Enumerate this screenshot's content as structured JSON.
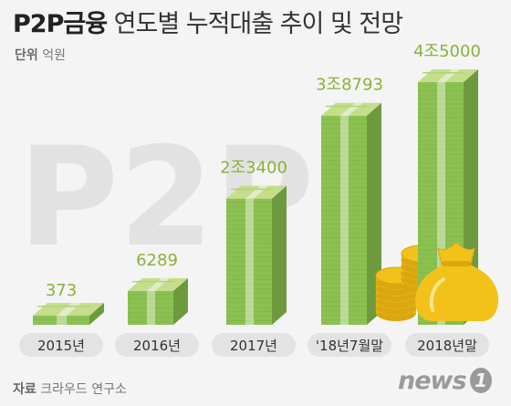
{
  "header": {
    "title_bold": "P2P금융",
    "title_rest": "연도별 누적대출 추이 및 전망",
    "unit_key": "단위",
    "unit_value": "억원"
  },
  "footer": {
    "source_key": "자료",
    "source_value": "크라우드 연구소",
    "logo_text": "news",
    "logo_badge": "1"
  },
  "watermark": "P2P",
  "colors": {
    "money_top": "#c5de8b",
    "money_front": "#8cc152",
    "money_side": "#6e9a3e",
    "band": "#e3eed0",
    "value_label": "#8cb13a",
    "category_pill": "#e3e3e3",
    "gold": "#f2c21b"
  },
  "chart_data": {
    "type": "bar",
    "title": "P2P금융 연도별 누적대출 추이 및 전망",
    "unit": "억원",
    "categories": [
      "2015년",
      "2016년",
      "2017년",
      "'18년7월말",
      "2018년말"
    ],
    "values": [
      373,
      6289,
      23400,
      38793,
      45000
    ],
    "value_labels": [
      "373",
      "6289",
      "2조3400",
      "3조8793",
      "4조5000"
    ],
    "ylim": [
      0,
      45000
    ],
    "grid": false,
    "legend": "none"
  }
}
